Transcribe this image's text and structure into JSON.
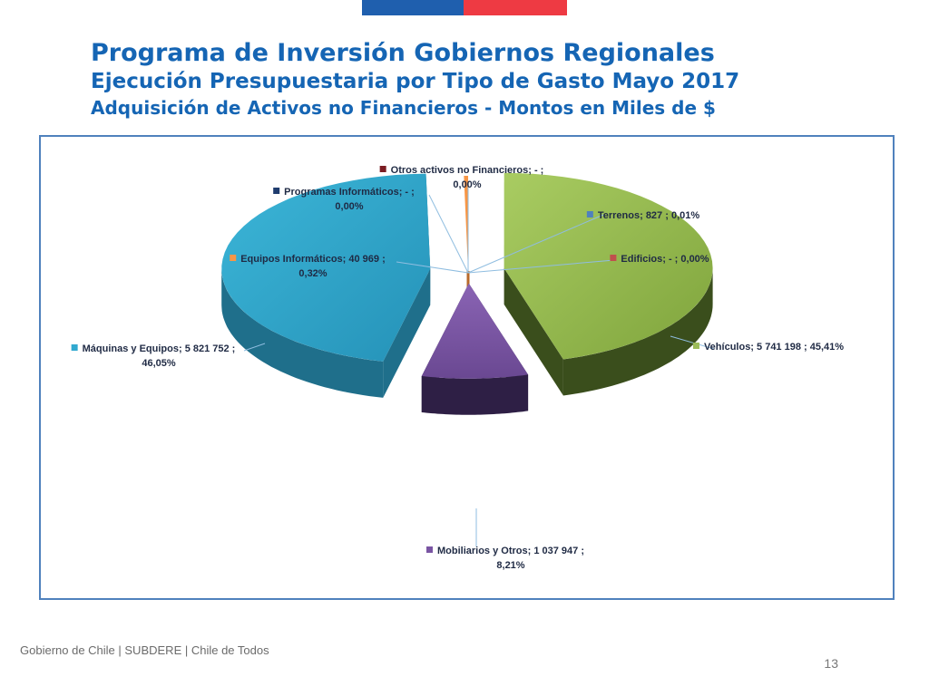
{
  "header": {
    "title": "Programa de Inversión Gobiernos Regionales",
    "subtitle1": "Ejecución Presupuestaria por Tipo de Gasto Mayo 2017",
    "subtitle2": "Adquisición de Activos no Financieros - Montos en Miles de $"
  },
  "colors": {
    "flag_blue": "#1f5fae",
    "flag_red": "#ee3a43",
    "title": "#1565b4",
    "frame": "#4f81bd"
  },
  "chart_data": {
    "type": "pie",
    "title": "Adquisición de Activos no Financieros - Montos en Miles de $",
    "unit": "Miles de $",
    "slices": [
      {
        "name": "Otros activos no Financieros",
        "value": 0,
        "value_label": "-",
        "percent_label": "0,00%",
        "label_line1": "Otros activos no Financieros;  -   ;",
        "label_line2": "0,00%",
        "color": "#7b1c22"
      },
      {
        "name": "Programas Informáticos",
        "value": 0,
        "value_label": "-",
        "percent_label": "0,00%",
        "label_line1": "Programas Informáticos;  -   ;",
        "label_line2": "0,00%",
        "color": "#1f3c6e"
      },
      {
        "name": "Terrenos",
        "value": 827,
        "value_label": "827",
        "percent_label": "0,01%",
        "label_line1": "Terrenos;  827 ; 0,01%",
        "label_line2": "",
        "color": "#4f81bd"
      },
      {
        "name": "Edificios",
        "value": 0,
        "value_label": "-",
        "percent_label": "0,00%",
        "label_line1": "Edificios;  -   ; 0,00%",
        "label_line2": "",
        "color": "#c0504d"
      },
      {
        "name": "Equipos Informáticos",
        "value": 40969,
        "value_label": "40 969",
        "percent_label": "0,32%",
        "label_line1": "Equipos Informáticos;  40 969 ;",
        "label_line2": "0,32%",
        "color": "#f79646"
      },
      {
        "name": "Vehículos",
        "value": 5741198,
        "value_label": "5 741 198",
        "percent_label": "45,41%",
        "label_line1": "Vehículos;  5 741 198 ; 45,41%",
        "label_line2": "",
        "color": "#9bbb59"
      },
      {
        "name": "Máquinas y Equipos",
        "value": 5821752,
        "value_label": "5 821 752",
        "percent_label": "46,05%",
        "label_line1": "Máquinas y Equipos;  5 821 752 ;",
        "label_line2": "46,05%",
        "color": "#31a9cf"
      },
      {
        "name": "Mobiliarios y Otros",
        "value": 1037947,
        "value_label": "1 037 947",
        "percent_label": "8,21%",
        "label_line1": "Mobiliarios y Otros;  1 037 947 ;",
        "label_line2": "8,21%",
        "color": "#7a55a3"
      }
    ]
  },
  "footer": {
    "left": "Gobierno de Chile | SUBDERE | Chile de Todos",
    "page_number": "13"
  }
}
